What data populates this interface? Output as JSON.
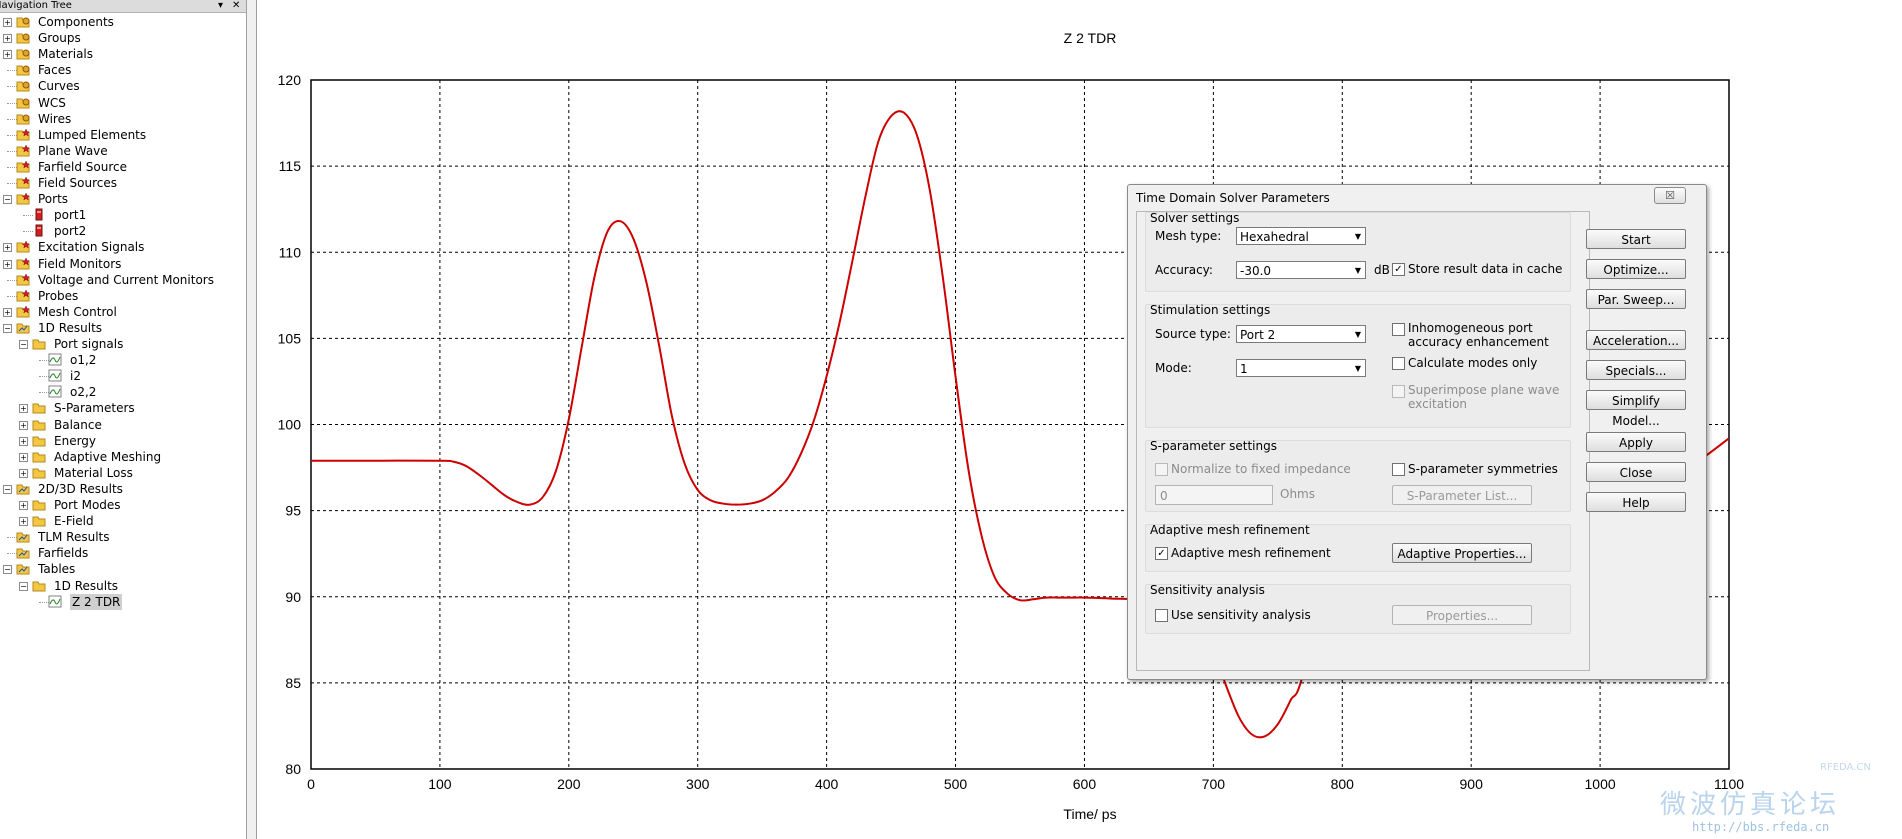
{
  "nav": {
    "title": "Navigation Tree",
    "header_buttons": [
      "▾",
      "✕"
    ],
    "items": [
      {
        "label": "Components",
        "level": 0,
        "exp": "+",
        "icon": "folder-light-icon"
      },
      {
        "label": "Groups",
        "level": 0,
        "exp": "+",
        "icon": "folder-light-icon"
      },
      {
        "label": "Materials",
        "level": 0,
        "exp": "+",
        "icon": "folder-light-icon"
      },
      {
        "label": "Faces",
        "level": 0,
        "exp": "",
        "icon": "folder-light-icon"
      },
      {
        "label": "Curves",
        "level": 0,
        "exp": "",
        "icon": "folder-light-icon"
      },
      {
        "label": "WCS",
        "level": 0,
        "exp": "",
        "icon": "folder-light-icon"
      },
      {
        "label": "Wires",
        "level": 0,
        "exp": "",
        "icon": "folder-light-icon"
      },
      {
        "label": "Lumped Elements",
        "level": 0,
        "exp": "",
        "icon": "folder-star-icon"
      },
      {
        "label": "Plane Wave",
        "level": 0,
        "exp": "",
        "icon": "folder-star-icon"
      },
      {
        "label": "Farfield Source",
        "level": 0,
        "exp": "",
        "icon": "folder-star-icon"
      },
      {
        "label": "Field Sources",
        "level": 0,
        "exp": "",
        "icon": "folder-star-icon"
      },
      {
        "label": "Ports",
        "level": 0,
        "exp": "−",
        "icon": "folder-star-icon"
      },
      {
        "label": "port1",
        "level": 1,
        "exp": "",
        "icon": "port-icon"
      },
      {
        "label": "port2",
        "level": 1,
        "exp": "",
        "icon": "port-icon"
      },
      {
        "label": "Excitation Signals",
        "level": 0,
        "exp": "+",
        "icon": "folder-star-icon"
      },
      {
        "label": "Field Monitors",
        "level": 0,
        "exp": "+",
        "icon": "folder-star-icon"
      },
      {
        "label": "Voltage and Current Monitors",
        "level": 0,
        "exp": "",
        "icon": "folder-star-icon"
      },
      {
        "label": "Probes",
        "level": 0,
        "exp": "",
        "icon": "folder-star-icon"
      },
      {
        "label": "Mesh Control",
        "level": 0,
        "exp": "+",
        "icon": "folder-star-icon"
      },
      {
        "label": "1D Results",
        "level": 0,
        "exp": "−",
        "icon": "folder-results-icon"
      },
      {
        "label": "Port signals",
        "level": 1,
        "exp": "−",
        "icon": "folder-icon"
      },
      {
        "label": "o1,2",
        "level": 2,
        "exp": "",
        "icon": "curve-icon"
      },
      {
        "label": "i2",
        "level": 2,
        "exp": "",
        "icon": "curve-icon"
      },
      {
        "label": "o2,2",
        "level": 2,
        "exp": "",
        "icon": "curve-icon"
      },
      {
        "label": "S-Parameters",
        "level": 1,
        "exp": "+",
        "icon": "folder-icon"
      },
      {
        "label": "Balance",
        "level": 1,
        "exp": "+",
        "icon": "folder-icon"
      },
      {
        "label": "Energy",
        "level": 1,
        "exp": "+",
        "icon": "folder-icon"
      },
      {
        "label": "Adaptive Meshing",
        "level": 1,
        "exp": "+",
        "icon": "folder-icon"
      },
      {
        "label": "Material Loss",
        "level": 1,
        "exp": "+",
        "icon": "folder-icon"
      },
      {
        "label": "2D/3D Results",
        "level": 0,
        "exp": "−",
        "icon": "folder-results-icon"
      },
      {
        "label": "Port Modes",
        "level": 1,
        "exp": "+",
        "icon": "folder-icon"
      },
      {
        "label": "E-Field",
        "level": 1,
        "exp": "+",
        "icon": "folder-icon"
      },
      {
        "label": "TLM Results",
        "level": 0,
        "exp": "",
        "icon": "folder-results-icon"
      },
      {
        "label": "Farfields",
        "level": 0,
        "exp": "",
        "icon": "folder-results-icon"
      },
      {
        "label": "Tables",
        "level": 0,
        "exp": "−",
        "icon": "folder-results-icon"
      },
      {
        "label": "1D Results",
        "level": 1,
        "exp": "−",
        "icon": "folder-icon"
      },
      {
        "label": "Z 2 TDR",
        "level": 2,
        "exp": "",
        "icon": "curve-icon",
        "selected": true
      }
    ]
  },
  "chart_data": {
    "type": "line",
    "title": "Z 2 TDR",
    "xlabel": "Time/ ps",
    "ylabel": "",
    "xlim": [
      0,
      1100
    ],
    "ylim": [
      80,
      120
    ],
    "x_ticks": [
      0,
      100,
      200,
      300,
      400,
      500,
      600,
      700,
      800,
      900,
      1000,
      1100
    ],
    "y_ticks": [
      80,
      85,
      90,
      95,
      100,
      105,
      110,
      115,
      120
    ],
    "grid": true,
    "line_color": "#cc0000",
    "series": [
      {
        "name": "",
        "x": [
          0,
          50,
          100,
          110,
          120,
          130,
          140,
          150,
          160,
          170,
          180,
          190,
          200,
          210,
          220,
          230,
          240,
          250,
          260,
          270,
          280,
          290,
          300,
          310,
          320,
          330,
          340,
          350,
          360,
          370,
          380,
          390,
          400,
          410,
          420,
          430,
          440,
          450,
          460,
          470,
          480,
          490,
          500,
          510,
          520,
          530,
          540,
          550,
          560,
          570,
          580,
          590,
          600,
          620,
          650,
          680,
          700,
          710,
          720,
          730,
          740,
          750,
          760,
          770,
          800,
          850,
          900,
          950,
          1000,
          1030,
          1050,
          1070,
          1100
        ],
        "y": [
          97.9,
          97.9,
          97.9,
          97.85,
          97.6,
          97.1,
          96.5,
          95.9,
          95.5,
          95.35,
          95.8,
          97.3,
          100.3,
          104.5,
          108.6,
          111.2,
          111.8,
          110.8,
          108.3,
          104.6,
          100.5,
          97.7,
          96.2,
          95.6,
          95.4,
          95.35,
          95.4,
          95.6,
          96.1,
          96.9,
          98.3,
          100.2,
          102.8,
          105.9,
          109.5,
          113.2,
          116.4,
          117.9,
          118.1,
          116.8,
          113.6,
          108.6,
          102.8,
          97.4,
          93.6,
          91.2,
          90.2,
          89.8,
          89.85,
          89.95,
          89.95,
          89.95,
          89.95,
          89.9,
          89.7,
          88.5,
          86.8,
          84.8,
          83.0,
          82.0,
          81.9,
          82.6,
          84.0,
          85.6,
          95.0,
          99.5,
          99.8,
          99.5,
          98.5,
          97.6,
          97.35,
          97.6,
          99.2
        ]
      }
    ]
  },
  "dialog": {
    "title": "Time Domain Solver Parameters",
    "close_label": "☒",
    "solver_settings": {
      "title": "Solver settings",
      "mesh_type_label": "Mesh type:",
      "mesh_type_value": "Hexahedral",
      "accuracy_label": "Accuracy:",
      "accuracy_value": "-30.0",
      "accuracy_unit": "dB",
      "store_cache_label": "Store result data in cache",
      "store_cache_checked": true
    },
    "stimulation_settings": {
      "title": "Stimulation settings",
      "source_type_label": "Source type:",
      "source_type_value": "Port 2",
      "mode_label": "Mode:",
      "mode_value": "1",
      "inhomogeneous_label_1": "Inhomogeneous port",
      "inhomogeneous_label_2": "accuracy enhancement",
      "calc_modes_label": "Calculate modes only",
      "superimpose_label_1": "Superimpose plane wave",
      "superimpose_label_2": "excitation"
    },
    "sparam_settings": {
      "title": "S-parameter settings",
      "normalize_label": "Normalize to fixed impedance",
      "symmetries_label": "S-parameter symmetries",
      "impedance_value": "0",
      "impedance_unit": "Ohms",
      "sparam_list_button": "S-Parameter List..."
    },
    "adaptive": {
      "title": "Adaptive mesh refinement",
      "checkbox_label": "Adaptive mesh refinement",
      "checked": true,
      "properties_button": "Adaptive Properties..."
    },
    "sensitivity": {
      "title": "Sensitivity analysis",
      "checkbox_label": "Use sensitivity analysis",
      "properties_button": "Properties..."
    },
    "buttons": {
      "start": "Start",
      "optimize": "Optimize...",
      "par_sweep": "Par. Sweep...",
      "acceleration": "Acceleration...",
      "specials": "Specials...",
      "simplify": "Simplify Model...",
      "apply": "Apply",
      "close": "Close",
      "help": "Help"
    }
  },
  "watermark": {
    "line1": "微波仿真论坛",
    "line2": "http://bbs.rfeda.cn",
    "line3": "RFEDA.CN"
  }
}
